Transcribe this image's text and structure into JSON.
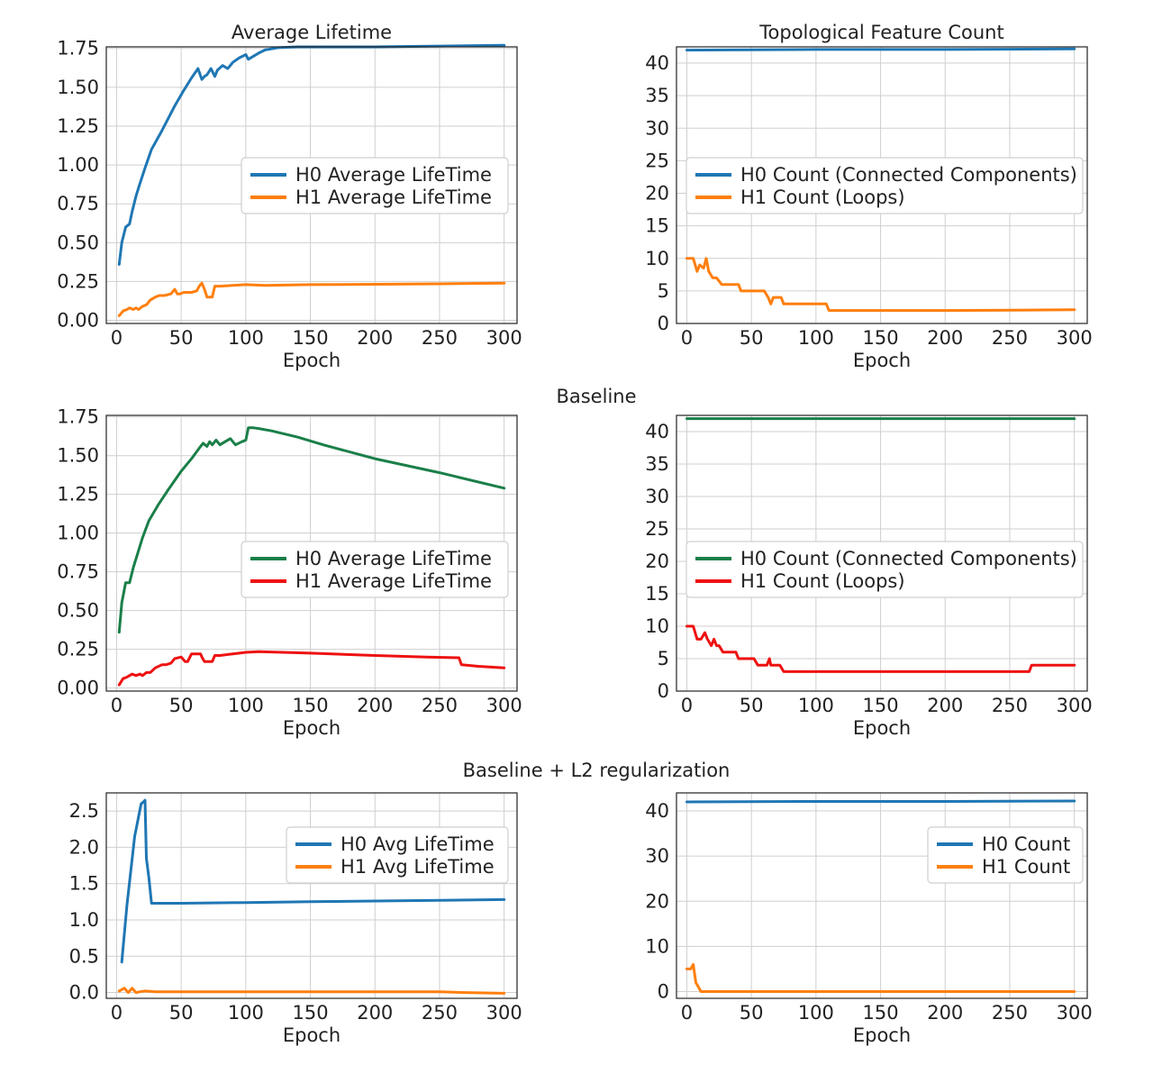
{
  "figure": {
    "section_titles": [
      "Baseline",
      "Baseline + L2 regularization"
    ]
  },
  "chart_data": [
    {
      "id": "avg_lifetime_1",
      "type": "line",
      "title": "Average Lifetime",
      "xlabel": "Epoch",
      "ylabel": "",
      "xlim": [
        -8,
        310
      ],
      "ylim": [
        -0.02,
        1.76
      ],
      "xticks": [
        0,
        50,
        100,
        150,
        200,
        250,
        300
      ],
      "yticks": [
        0,
        0.25,
        0.5,
        0.75,
        1.0,
        1.25,
        1.5,
        1.75
      ],
      "ytick_labels": [
        "0.00",
        "0.25",
        "0.50",
        "0.75",
        "1.00",
        "1.25",
        "1.50",
        "1.75"
      ],
      "grid": true,
      "legend": "center-right",
      "series": [
        {
          "name": "H0 Average LifeTime",
          "color": "#1f77b4",
          "x": [
            2,
            4,
            7,
            10,
            12,
            15,
            18,
            22,
            27,
            35,
            45,
            52,
            58,
            63,
            66,
            68,
            70,
            73,
            76,
            78,
            82,
            86,
            90,
            95,
            100,
            102,
            106,
            110,
            115,
            125,
            140,
            160,
            200,
            250,
            300
          ],
          "y": [
            0.36,
            0.5,
            0.6,
            0.62,
            0.7,
            0.8,
            0.88,
            0.98,
            1.1,
            1.22,
            1.38,
            1.48,
            1.56,
            1.62,
            1.55,
            1.57,
            1.58,
            1.62,
            1.57,
            1.61,
            1.64,
            1.62,
            1.66,
            1.69,
            1.71,
            1.68,
            1.7,
            1.72,
            1.74,
            1.755,
            1.76,
            1.76,
            1.76,
            1.765,
            1.77
          ]
        },
        {
          "name": "H1 Average LifeTime",
          "color": "#ff7f0e",
          "x": [
            2,
            5,
            8,
            10,
            13,
            15,
            17,
            20,
            23,
            26,
            30,
            33,
            37,
            42,
            45,
            47,
            49,
            52,
            58,
            62,
            64,
            66,
            68,
            70,
            74,
            76,
            80,
            100,
            115,
            150,
            200,
            250,
            300
          ],
          "y": [
            0.03,
            0.06,
            0.07,
            0.08,
            0.07,
            0.08,
            0.07,
            0.09,
            0.1,
            0.13,
            0.15,
            0.16,
            0.16,
            0.17,
            0.2,
            0.17,
            0.17,
            0.18,
            0.18,
            0.19,
            0.22,
            0.24,
            0.2,
            0.15,
            0.15,
            0.22,
            0.22,
            0.23,
            0.225,
            0.23,
            0.232,
            0.235,
            0.24
          ]
        }
      ]
    },
    {
      "id": "feature_count_1",
      "type": "line",
      "title": "Topological Feature Count",
      "xlabel": "Epoch",
      "ylabel": "",
      "xlim": [
        -8,
        310
      ],
      "ylim": [
        0,
        42.5
      ],
      "xticks": [
        0,
        50,
        100,
        150,
        200,
        250,
        300
      ],
      "yticks": [
        0,
        5,
        10,
        15,
        20,
        25,
        30,
        35,
        40
      ],
      "ytick_labels": [
        "0",
        "5",
        "10",
        "15",
        "20",
        "25",
        "30",
        "35",
        "40"
      ],
      "grid": true,
      "legend": "center-right",
      "series": [
        {
          "name": "H0 Count (Connected Components)",
          "color": "#1f77b4",
          "x": [
            0,
            100,
            200,
            300
          ],
          "y": [
            42,
            42.1,
            42.1,
            42.2
          ]
        },
        {
          "name": "H1 Count (Loops)",
          "color": "#ff7f0e",
          "x": [
            0,
            5,
            8,
            10,
            13,
            15,
            17,
            20,
            23,
            27,
            40,
            42,
            55,
            60,
            63,
            65,
            67,
            70,
            73,
            75,
            90,
            108,
            110,
            112,
            150,
            200,
            250,
            300
          ],
          "y": [
            10,
            10,
            8,
            9,
            8.5,
            10,
            8,
            7,
            7,
            6,
            6,
            5,
            5,
            5,
            4,
            3,
            4,
            4,
            4,
            3,
            3,
            3,
            2,
            2,
            2,
            2,
            2.05,
            2.1
          ]
        }
      ]
    },
    {
      "id": "avg_lifetime_2",
      "type": "line",
      "title": "",
      "xlabel": "Epoch",
      "ylabel": "",
      "xlim": [
        -8,
        310
      ],
      "ylim": [
        -0.02,
        1.76
      ],
      "xticks": [
        0,
        50,
        100,
        150,
        200,
        250,
        300
      ],
      "yticks": [
        0,
        0.25,
        0.5,
        0.75,
        1.0,
        1.25,
        1.5,
        1.75
      ],
      "ytick_labels": [
        "0.00",
        "0.25",
        "0.50",
        "0.75",
        "1.00",
        "1.25",
        "1.50",
        "1.75"
      ],
      "grid": true,
      "legend": "center-right",
      "series": [
        {
          "name": "H0 Average LifeTime",
          "color": "#1a7f48",
          "x": [
            2,
            4,
            7,
            10,
            13,
            16,
            20,
            25,
            32,
            40,
            50,
            58,
            65,
            67,
            70,
            72,
            74,
            77,
            80,
            84,
            88,
            92,
            97,
            100,
            102,
            106,
            110,
            120,
            140,
            160,
            200,
            250,
            300
          ],
          "y": [
            0.36,
            0.55,
            0.68,
            0.68,
            0.78,
            0.86,
            0.97,
            1.08,
            1.18,
            1.28,
            1.4,
            1.48,
            1.56,
            1.58,
            1.56,
            1.59,
            1.57,
            1.6,
            1.57,
            1.59,
            1.61,
            1.57,
            1.59,
            1.6,
            1.68,
            1.68,
            1.675,
            1.66,
            1.62,
            1.57,
            1.48,
            1.39,
            1.29
          ]
        },
        {
          "name": "H1 Average LifeTime",
          "color": "#ee1111",
          "x": [
            2,
            5,
            8,
            12,
            15,
            18,
            20,
            23,
            26,
            30,
            35,
            38,
            42,
            45,
            50,
            53,
            55,
            58,
            62,
            65,
            66,
            68,
            70,
            74,
            76,
            80,
            90,
            100,
            110,
            150,
            200,
            240,
            265,
            267,
            280,
            300
          ],
          "y": [
            0.02,
            0.06,
            0.07,
            0.09,
            0.08,
            0.09,
            0.08,
            0.1,
            0.1,
            0.13,
            0.15,
            0.15,
            0.16,
            0.19,
            0.2,
            0.17,
            0.17,
            0.22,
            0.22,
            0.22,
            0.2,
            0.17,
            0.17,
            0.17,
            0.21,
            0.21,
            0.22,
            0.23,
            0.235,
            0.225,
            0.21,
            0.2,
            0.195,
            0.15,
            0.14,
            0.13
          ]
        }
      ]
    },
    {
      "id": "feature_count_2",
      "type": "line",
      "title": "",
      "xlabel": "Epoch",
      "ylabel": "",
      "xlim": [
        -8,
        310
      ],
      "ylim": [
        0,
        42.5
      ],
      "xticks": [
        0,
        50,
        100,
        150,
        200,
        250,
        300
      ],
      "yticks": [
        0,
        5,
        10,
        15,
        20,
        25,
        30,
        35,
        40
      ],
      "ytick_labels": [
        "0",
        "5",
        "10",
        "15",
        "20",
        "25",
        "30",
        "35",
        "40"
      ],
      "grid": true,
      "legend": "center-right",
      "series": [
        {
          "name": "H0 Count (Connected Components)",
          "color": "#1a7f48",
          "x": [
            0,
            100,
            200,
            300
          ],
          "y": [
            42,
            42,
            42,
            42
          ]
        },
        {
          "name": "H1 Count (Loops)",
          "color": "#ee1111",
          "x": [
            0,
            5,
            8,
            11,
            14,
            16,
            19,
            21,
            23,
            25,
            28,
            38,
            40,
            52,
            55,
            62,
            64,
            65,
            67,
            72,
            75,
            80,
            100,
            150,
            200,
            250,
            265,
            267,
            280,
            300
          ],
          "y": [
            10,
            10,
            8,
            8,
            9,
            8,
            7,
            8,
            7,
            7,
            6,
            6,
            5,
            5,
            4,
            4,
            5,
            4,
            4,
            4,
            3,
            3,
            3,
            3,
            3,
            3,
            3,
            4,
            4,
            4
          ]
        }
      ]
    },
    {
      "id": "avg_lifetime_3",
      "type": "line",
      "title": "",
      "xlabel": "Epoch",
      "ylabel": "",
      "xlim": [
        -8,
        310
      ],
      "ylim": [
        -0.08,
        2.75
      ],
      "xticks": [
        0,
        50,
        100,
        150,
        200,
        250,
        300
      ],
      "yticks": [
        0,
        0.5,
        1.0,
        1.5,
        2.0,
        2.5
      ],
      "ytick_labels": [
        "0.0",
        "0.5",
        "1.0",
        "1.5",
        "2.0",
        "2.5"
      ],
      "grid": true,
      "legend": "top-right",
      "series": [
        {
          "name": "H0 Avg LifeTime",
          "color": "#1f77b4",
          "x": [
            4,
            8,
            14,
            19,
            21,
            22,
            23,
            25,
            27,
            50,
            100,
            150,
            200,
            250,
            300
          ],
          "y": [
            0.42,
            1.2,
            2.15,
            2.6,
            2.63,
            2.65,
            1.85,
            1.58,
            1.23,
            1.23,
            1.24,
            1.25,
            1.26,
            1.27,
            1.28
          ]
        },
        {
          "name": "H1 Avg LifeTime",
          "color": "#ff7f0e",
          "x": [
            2,
            6,
            9,
            12,
            15,
            18,
            22,
            30,
            100,
            200,
            250,
            270,
            300
          ],
          "y": [
            0.02,
            0.06,
            0.0,
            0.06,
            0.0,
            0.01,
            0.02,
            0.01,
            0.01,
            0.01,
            0.01,
            0.0,
            -0.01
          ]
        }
      ]
    },
    {
      "id": "feature_count_3",
      "type": "line",
      "title": "",
      "xlabel": "Epoch",
      "ylabel": "",
      "xlim": [
        -8,
        310
      ],
      "ylim": [
        -1.5,
        44
      ],
      "xticks": [
        0,
        50,
        100,
        150,
        200,
        250,
        300
      ],
      "yticks": [
        0,
        10,
        20,
        30,
        40
      ],
      "ytick_labels": [
        "0",
        "10",
        "20",
        "30",
        "40"
      ],
      "grid": true,
      "legend": "top-right",
      "series": [
        {
          "name": "H0 Count",
          "color": "#1f77b4",
          "x": [
            0,
            100,
            200,
            300
          ],
          "y": [
            42,
            42.1,
            42.1,
            42.2
          ]
        },
        {
          "name": "H1 Count",
          "color": "#ff7f0e",
          "x": [
            0,
            3,
            5,
            7,
            9,
            11,
            20,
            100,
            200,
            300
          ],
          "y": [
            5,
            5,
            6,
            2,
            1,
            0,
            0,
            0,
            0,
            0
          ]
        }
      ]
    }
  ]
}
